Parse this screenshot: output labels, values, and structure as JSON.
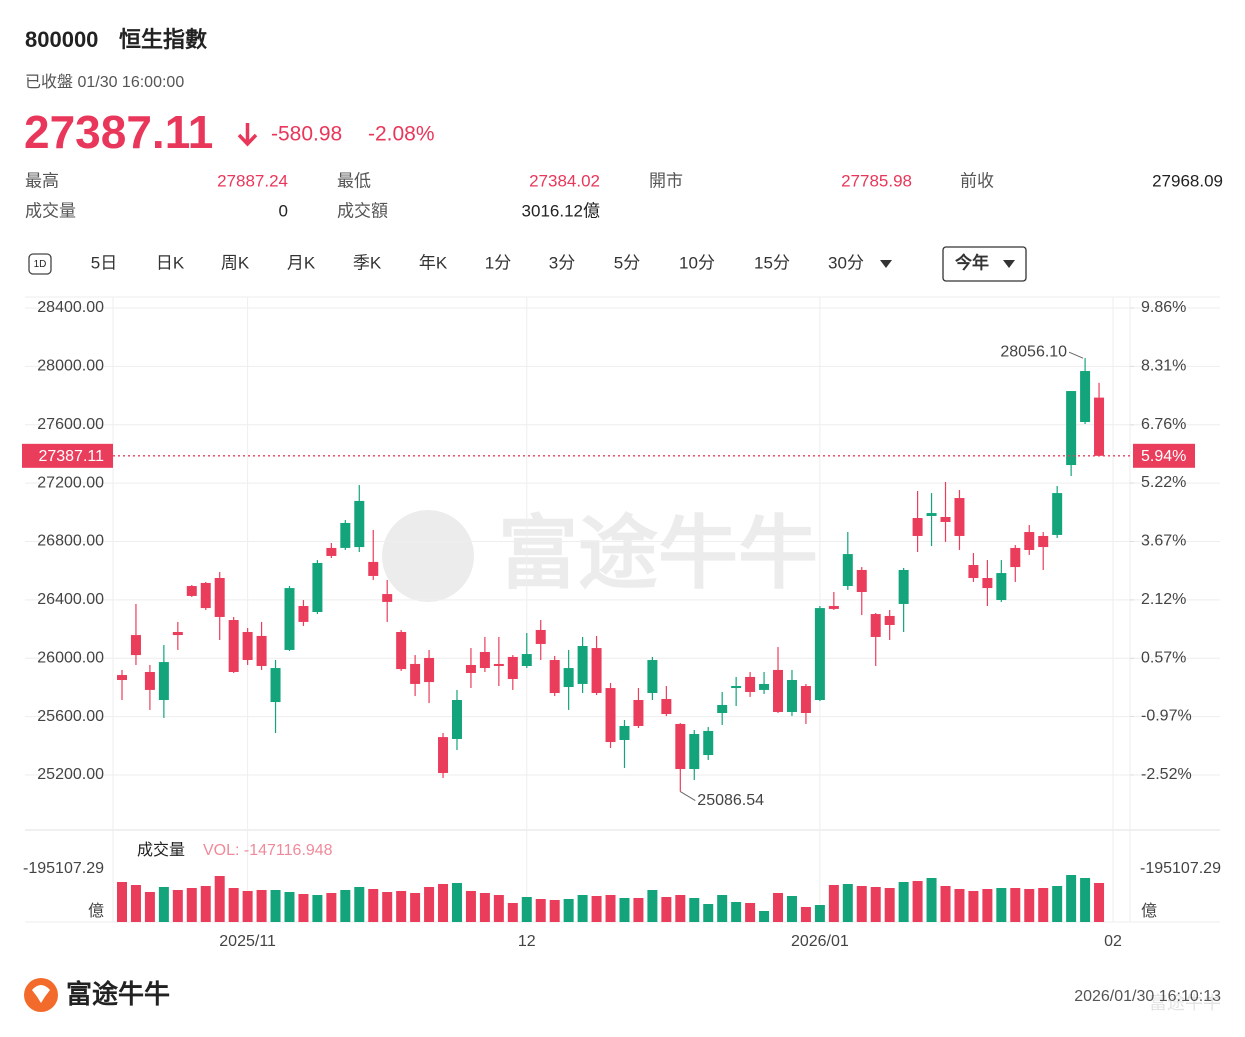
{
  "header": {
    "code": "800000",
    "name": "恒生指數",
    "status": "已收盤 01/30 16:00:00",
    "price": "27387.11",
    "change": "-580.98",
    "change_pct": "-2.08%"
  },
  "stats": {
    "high_label": "最高",
    "high": "27887.24",
    "low_label": "最低",
    "low": "27384.02",
    "open_label": "開市",
    "open": "27785.98",
    "prev_close_label": "前收",
    "prev_close": "27968.09",
    "volume_label": "成交量",
    "volume": "0",
    "turnover_label": "成交額",
    "turnover": "3016.12億"
  },
  "tabs": [
    "1D",
    "5日",
    "日K",
    "周K",
    "月K",
    "季K",
    "年K",
    "1分",
    "3分",
    "5分",
    "10分",
    "15分",
    "30分"
  ],
  "range_selector": "今年",
  "watermark": "富途牛牛",
  "chart_data": {
    "type": "candlestick",
    "categories": [
      null,
      null,
      null,
      null,
      null,
      null,
      null,
      null,
      null,
      "2025/11",
      null,
      null,
      null,
      null,
      null,
      null,
      null,
      null,
      null,
      null,
      null,
      null,
      null,
      null,
      null,
      null,
      null,
      null,
      null,
      "12",
      null,
      null,
      null,
      null,
      null,
      null,
      null,
      null,
      null,
      null,
      null,
      null,
      null,
      null,
      null,
      null,
      null,
      null,
      null,
      null,
      "2026/01",
      null,
      null,
      null,
      null,
      null,
      null,
      null,
      null,
      null,
      null,
      null,
      null,
      null,
      null,
      null,
      null,
      null,
      null,
      null,
      null,
      "02"
    ],
    "open": [
      25885,
      26159,
      25906,
      25714,
      26180,
      26495,
      26516,
      26550,
      26262,
      26180,
      26153,
      25700,
      26057,
      26358,
      26317,
      26756,
      26756,
      26762,
      26660,
      26440,
      26180,
      25961,
      26002,
      25460,
      25447,
      25954,
      26043,
      25961,
      26009,
      25947,
      26194,
      25988,
      25803,
      25824,
      26070,
      25796,
      25440,
      25714,
      25762,
      25721,
      25550,
      25241,
      25337,
      25625,
      25796,
      25872,
      25783,
      25920,
      25632,
      25810,
      25714,
      26358,
      26495,
      26605,
      26303,
      26290,
      26372,
      26961,
      26975,
      26968,
      27098,
      26639,
      26550,
      26399,
      26756,
      26865,
      26838,
      26845,
      27324,
      27619,
      27785.98,
      null
    ],
    "high": [
      25920,
      26372,
      25954,
      26091,
      26249,
      26502,
      26523,
      26591,
      26283,
      26207,
      26249,
      25988,
      26495,
      26399,
      26673,
      26790,
      26947,
      27187,
      26879,
      26536,
      26194,
      26022,
      26057,
      25488,
      25783,
      26070,
      26146,
      26146,
      26022,
      26173,
      26262,
      26016,
      26057,
      26146,
      26153,
      25831,
      25577,
      25796,
      26009,
      25810,
      25556,
      25508,
      25529,
      25769,
      25872,
      25906,
      25906,
      26077,
      25920,
      25824,
      26358,
      26454,
      26865,
      26625,
      26310,
      26331,
      26619,
      27146,
      27132,
      27208,
      27153,
      26721,
      26673,
      26673,
      26776,
      26913,
      26865,
      27180,
      27831,
      28056.1,
      27887.24,
      null
    ],
    "low": [
      25714,
      25954,
      25646,
      25591,
      26057,
      26420,
      26331,
      26125,
      25899,
      25954,
      25920,
      25488,
      26050,
      26221,
      26303,
      26687,
      26742,
      26728,
      26536,
      26249,
      25913,
      25741,
      25693,
      25180,
      25371,
      25796,
      25906,
      25810,
      25783,
      25933,
      25988,
      25741,
      25646,
      25762,
      25748,
      25385,
      25248,
      25522,
      25714,
      25604,
      25086.54,
      25166,
      25303,
      25543,
      25673,
      25735,
      25755,
      25625,
      25604,
      25550,
      25707,
      26331,
      26468,
      26296,
      25947,
      26125,
      26180,
      26728,
      26769,
      26797,
      26742,
      26523,
      26358,
      26386,
      26523,
      26708,
      26605,
      26824,
      27249,
      27605,
      27384.02,
      null
    ],
    "close": [
      25851,
      26022,
      25783,
      25974,
      26159,
      26427,
      26344,
      26283,
      25906,
      25988,
      25947,
      25933,
      26481,
      26249,
      26653,
      26701,
      26927,
      27078,
      26564,
      26386,
      25926,
      25824,
      25837,
      25214,
      25714,
      25899,
      25933,
      25947,
      25858,
      26029,
      26098,
      25762,
      25933,
      26084,
      25762,
      25426,
      25536,
      25536,
      25988,
      25618,
      25241,
      25481,
      25502,
      25680,
      25810,
      25769,
      25824,
      25632,
      25851,
      25625,
      26344,
      26338,
      26714,
      26454,
      26146,
      26228,
      26605,
      26838,
      26995,
      26934,
      26838,
      26550,
      26481,
      26584,
      26625,
      26742,
      26762,
      27132,
      27831,
      27968.09,
      27387.11,
      null
    ],
    "volume": [
      3092,
      2860,
      2319,
      2706,
      2474,
      2628,
      2783,
      3556,
      2628,
      2396,
      2474,
      2474,
      2319,
      2164,
      2087,
      2242,
      2474,
      2706,
      2551,
      2319,
      2396,
      2242,
      2706,
      2937,
      3015,
      2396,
      2242,
      2087,
      1469,
      1933,
      1778,
      1701,
      1778,
      2087,
      2010,
      2087,
      1855,
      1855,
      2474,
      1933,
      2087,
      1855,
      1391,
      2087,
      1546,
      1469,
      850,
      2242,
      2010,
      1160,
      1314,
      2860,
      2937,
      2783,
      2706,
      2628,
      3092,
      3169,
      3401,
      2783,
      2551,
      2396,
      2551,
      2628,
      2628,
      2551,
      2628,
      2783,
      3633,
      3401,
      3016.12,
      null
    ],
    "up_color": "#13a47b",
    "down_color": "#ea3d5c",
    "ylim": [
      24823.3,
      28475.4
    ],
    "yticks": [
      {
        "value": 28400,
        "label": "28400.00"
      },
      {
        "value": 28000,
        "label": "28000.00"
      },
      {
        "value": 27600,
        "label": "27600.00"
      },
      {
        "value": 27200,
        "label": "27200.00"
      },
      {
        "value": 26800,
        "label": "26800.00"
      },
      {
        "value": 26400,
        "label": "26400.00"
      },
      {
        "value": 26000,
        "label": "26000.00"
      },
      {
        "value": 25600,
        "label": "25600.00"
      },
      {
        "value": 25200,
        "label": "25200.00"
      }
    ],
    "y2lim": [
      -3.98,
      10.15
    ],
    "y2ticks": [
      {
        "value": 9.86,
        "label": "9.86%"
      },
      {
        "value": 8.31,
        "label": "8.31%"
      },
      {
        "value": 6.76,
        "label": "6.76%"
      },
      {
        "value": 5.22,
        "label": "5.22%"
      },
      {
        "value": 3.67,
        "label": "3.67%"
      },
      {
        "value": 2.12,
        "label": "2.12%"
      },
      {
        "value": 0.57,
        "label": "0.57%"
      },
      {
        "value": -0.97,
        "label": "-0.97%"
      },
      {
        "value": -2.52,
        "label": "-2.52%"
      }
    ],
    "grid": true,
    "last_price": 27387.11,
    "last_price_pct": {
      "value": 5.94,
      "label": "5.94%"
    },
    "high_annotation": {
      "value": 28056.1,
      "label": "28056.10"
    },
    "low_annotation": {
      "value": 25086.54,
      "label": "25086.54"
    },
    "volume_ylim": [
      0,
      4097
    ],
    "volume_title": "成交量",
    "volume_legend": "VOL: -147116.948",
    "volume_axis_label": "-195107.29",
    "volume_unit": "億"
  },
  "footer": {
    "brand": "富途牛牛",
    "timestamp": "2026/01/30 16:10:13"
  }
}
